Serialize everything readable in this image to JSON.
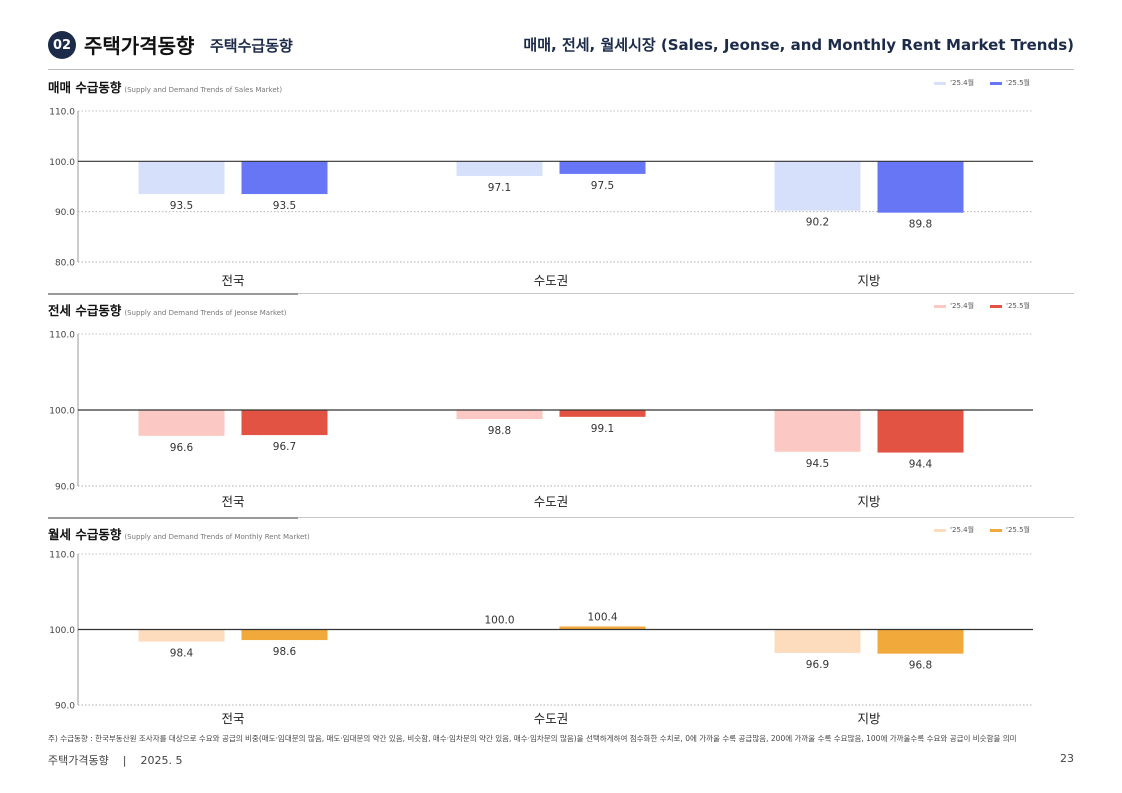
{
  "header": {
    "badge": "02",
    "title": "주택가격동향",
    "subtitle": "주택수급동향",
    "right": "매매, 전세, 월세시장 (Sales, Jeonse, and Monthly Rent Market Trends)"
  },
  "chart_data": [
    {
      "type": "bar",
      "title": "매매 수급동향",
      "title_en": "(Supply and Demand Trends of Sales Market)",
      "categories": [
        "전국",
        "수도권",
        "지방"
      ],
      "ylim": [
        80,
        110
      ],
      "yticks": [
        "110.0",
        "100.0",
        "90.0",
        "80.0"
      ],
      "baseline": 100,
      "grid": true,
      "legend_position": "top-right",
      "colors": [
        "#d6e0fa",
        "#6676f5"
      ],
      "series": [
        {
          "name": "'25.4월",
          "values": [
            93.5,
            97.1,
            90.2
          ]
        },
        {
          "name": "'25.5월",
          "values": [
            93.5,
            97.5,
            89.8
          ]
        }
      ]
    },
    {
      "type": "bar",
      "title": "전세 수급동향",
      "title_en": "(Supply and Demand Trends of Jeonse Market)",
      "categories": [
        "전국",
        "수도권",
        "지방"
      ],
      "ylim": [
        90,
        110
      ],
      "yticks": [
        "110.0",
        "100.0",
        "90.0"
      ],
      "baseline": 100,
      "grid": true,
      "legend_position": "top-right",
      "colors": [
        "#fcc8c3",
        "#e25343"
      ],
      "series": [
        {
          "name": "'25.4월",
          "values": [
            96.6,
            98.8,
            94.5
          ]
        },
        {
          "name": "'25.5월",
          "values": [
            96.7,
            99.1,
            94.4
          ]
        }
      ]
    },
    {
      "type": "bar",
      "title": "월세 수급동향",
      "title_en": "(Supply and Demand Trends of Monthly Rent Market)",
      "categories": [
        "전국",
        "수도권",
        "지방"
      ],
      "ylim": [
        90,
        110
      ],
      "yticks": [
        "110.0",
        "100.0",
        "90.0"
      ],
      "baseline": 100,
      "grid": true,
      "legend_position": "top-right",
      "colors": [
        "#fcdcbd",
        "#f2a93b"
      ],
      "series": [
        {
          "name": "'25.4월",
          "values": [
            98.4,
            100.0,
            96.9
          ]
        },
        {
          "name": "'25.5월",
          "values": [
            98.6,
            100.4,
            96.8
          ]
        }
      ]
    }
  ],
  "footnote": "주) 수급동향 : 한국부동산원 조사자를 대상으로 수요와 공급의 비중(매도·임대문의 많음, 매도·임대문의 약간 있음, 비슷함, 매수·임차문의 약간 있음, 매수·임차문의 많음)을 선택하게하여 점수화한 수치로, 0에 가까울 수록 공급많음, 200에 가까울 수록 수요많음, 100에 가까울수록 수요와 공급이 비슷함을 의미",
  "footer": {
    "left": "주택가격동향",
    "divider": "|",
    "date": "2025. 5",
    "page": "23"
  }
}
